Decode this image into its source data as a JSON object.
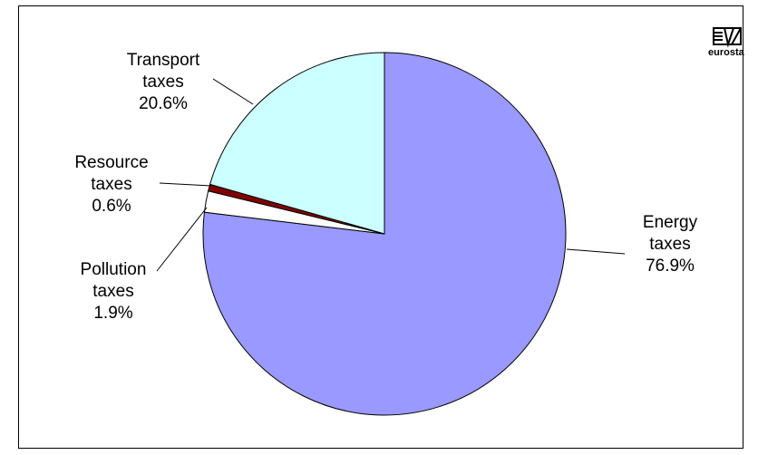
{
  "chart_data": {
    "type": "pie",
    "start_angle_deg": 0,
    "direction": "clockwise",
    "slices": [
      {
        "name": "Energy taxes",
        "label_lines": [
          "Energy",
          "taxes",
          "76.9%"
        ],
        "value": 76.9,
        "color": "#9999ff",
        "key": "energy"
      },
      {
        "name": "Pollution taxes",
        "label_lines": [
          "Pollution",
          "taxes",
          "1.9%"
        ],
        "value": 1.9,
        "color": "#ffffff",
        "key": "pollution"
      },
      {
        "name": "Resource taxes",
        "label_lines": [
          "Resource",
          "taxes",
          "0.6%"
        ],
        "value": 0.6,
        "color": "#800000",
        "key": "resource"
      },
      {
        "name": "Transport taxes",
        "label_lines": [
          "Transport",
          "taxes",
          "20.6%"
        ],
        "value": 20.6,
        "color": "#ccffff",
        "key": "transport"
      }
    ]
  },
  "logo": {
    "text": "eurostat",
    "icon": "eurostat-logo-icon"
  }
}
